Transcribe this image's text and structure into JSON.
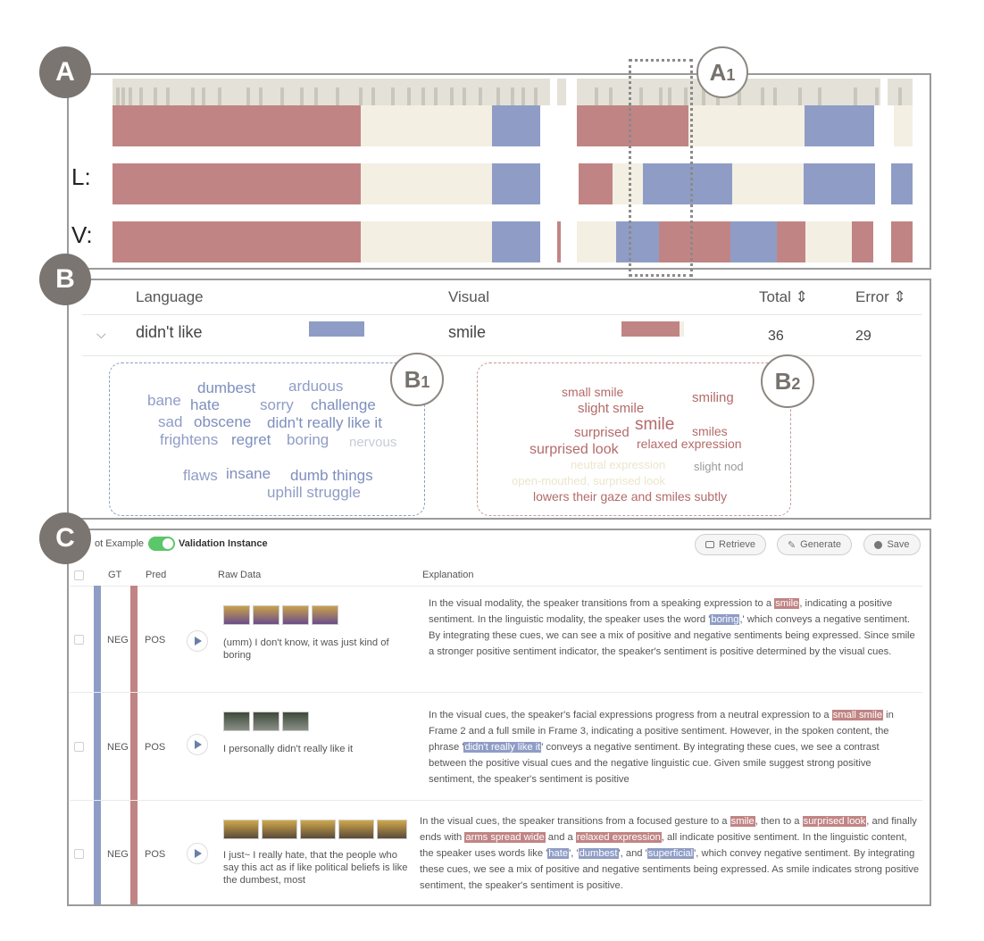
{
  "colors": {
    "negative": "#8f9dc6",
    "positive": "#c18484",
    "neutral": "#f3efe3",
    "badge": "#7a7570"
  },
  "badges": {
    "a": "A",
    "b": "B",
    "c": "C"
  },
  "sub_badges": {
    "a1_letter": "A",
    "a1_sub": "1",
    "b1_letter": "B",
    "b1_sub": "1",
    "b2_letter": "B",
    "b2_sub": "2"
  },
  "panel_a": {
    "label_l": "L:",
    "label_v": "V:"
  },
  "panel_b": {
    "headers": {
      "language": "Language",
      "visual": "Visual",
      "total": "Total ⇕",
      "error": "Error ⇕"
    },
    "row": {
      "toggle": "⌵",
      "language": "didn't like",
      "visual": "smile",
      "total": "36",
      "error": "29"
    },
    "language_cloud": [
      "dumbest",
      "arduous",
      "bane",
      "hate",
      "sorry",
      "challenge",
      "sad",
      "obscene",
      "didn't really like it",
      "frightens",
      "regret",
      "boring",
      "nervous",
      "flaws",
      "insane",
      "dumb things",
      "uphill struggle"
    ],
    "visual_cloud": [
      "small smile",
      "smiling",
      "slight smile",
      "smile",
      "surprised",
      "smiles",
      "relaxed expression",
      "surprised look",
      "neutral expression",
      "slight nod",
      "open-mouthed, surprised look",
      "lowers their gaze and smiles subtly"
    ]
  },
  "panel_c": {
    "toggle_left": "ot Example",
    "toggle_right": "Validation Instance",
    "buttons": {
      "retrieve": "Retrieve",
      "generate": "Generate",
      "save": "Save"
    },
    "columns": {
      "gt": "GT",
      "pred": "Pred",
      "raw": "Raw Data",
      "explanation": "Explanation"
    },
    "rows": [
      {
        "gt": "NEG",
        "pred": "POS",
        "raw": "(umm) I don't know, it was just kind of boring",
        "explanation": [
          {
            "t": "In the visual modality, the speaker transitions from a speaking expression to a "
          },
          {
            "t": "smile",
            "h": "r"
          },
          {
            "t": ", indicating a positive sentiment. In the linguistic modality, the speaker uses the word '"
          },
          {
            "t": "boring",
            "h": "b"
          },
          {
            "t": ",' which conveys a negative sentiment. By integrating these cues, we can see a mix of positive and negative sentiments being expressed. Since smile a stronger positive sentiment indicator, the speaker's sentiment is positive determined by the visual cues."
          }
        ]
      },
      {
        "gt": "NEG",
        "pred": "POS",
        "raw": "I personally didn't really like it",
        "explanation": [
          {
            "t": "In the visual cues, the speaker's facial expressions progress from a neutral expression to a "
          },
          {
            "t": "small smile",
            "h": "r"
          },
          {
            "t": " in Frame 2 and a full smile in Frame 3, indicating a positive sentiment. However, in the spoken content, the phrase '"
          },
          {
            "t": "didn't really like it",
            "h": "b"
          },
          {
            "t": "' conveys a negative sentiment. By integrating these cues, we see a contrast between the positive visual cues and the negative linguistic cue. Given smile suggest strong positive sentiment, the speaker's sentiment is positive"
          }
        ]
      },
      {
        "gt": "NEG",
        "pred": "POS",
        "raw": "I just~ I really hate, that the people who say this act as if like political beliefs is like the dumbest, most",
        "explanation": [
          {
            "t": "In the visual cues, the speaker transitions from a focused gesture to a "
          },
          {
            "t": "smile",
            "h": "r"
          },
          {
            "t": ", then to a "
          },
          {
            "t": "surprised look",
            "h": "r"
          },
          {
            "t": ", and finally ends with "
          },
          {
            "t": "arms spread wide",
            "h": "r"
          },
          {
            "t": " and a "
          },
          {
            "t": "relaxed expression",
            "h": "r"
          },
          {
            "t": ", all indicate positive sentiment. In the linguistic content, the speaker uses words like '"
          },
          {
            "t": "hate",
            "h": "b"
          },
          {
            "t": "', '"
          },
          {
            "t": "dumbest",
            "h": "b"
          },
          {
            "t": "', and '"
          },
          {
            "t": "superficial",
            "h": "b"
          },
          {
            "t": "', which convey negative sentiment. By integrating these cues, we see a mix of positive and negative sentiments being expressed. As smile indicates strong positive sentiment, the speaker's sentiment is positive."
          }
        ]
      }
    ]
  }
}
